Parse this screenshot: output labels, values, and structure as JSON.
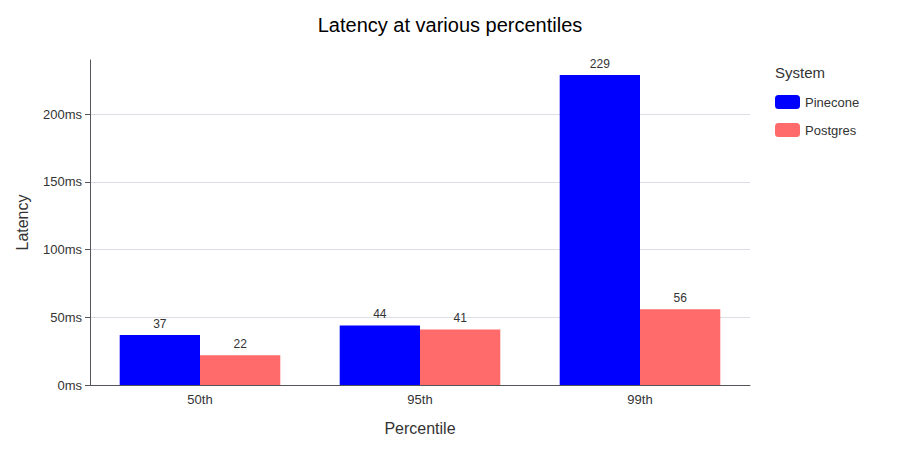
{
  "chart_data": {
    "type": "bar",
    "title": "Latency at various percentiles",
    "xlabel": "Percentile",
    "ylabel": "Latency",
    "categories": [
      "50th",
      "95th",
      "99th"
    ],
    "series": [
      {
        "name": "Pinecone",
        "color": "#0000ff",
        "values": [
          37,
          44,
          229
        ]
      },
      {
        "name": "Postgres",
        "color": "#ff6b6b",
        "values": [
          22,
          41,
          56
        ]
      }
    ],
    "ylim": [
      0,
      240
    ],
    "yticks": [
      {
        "value": 0,
        "label": "0ms"
      },
      {
        "value": 50,
        "label": "50ms"
      },
      {
        "value": 100,
        "label": "100ms"
      },
      {
        "value": 150,
        "label": "150ms"
      },
      {
        "value": 200,
        "label": "200ms"
      }
    ],
    "grid": true,
    "data_labels": true,
    "legend": "right",
    "legend_title": "System"
  }
}
